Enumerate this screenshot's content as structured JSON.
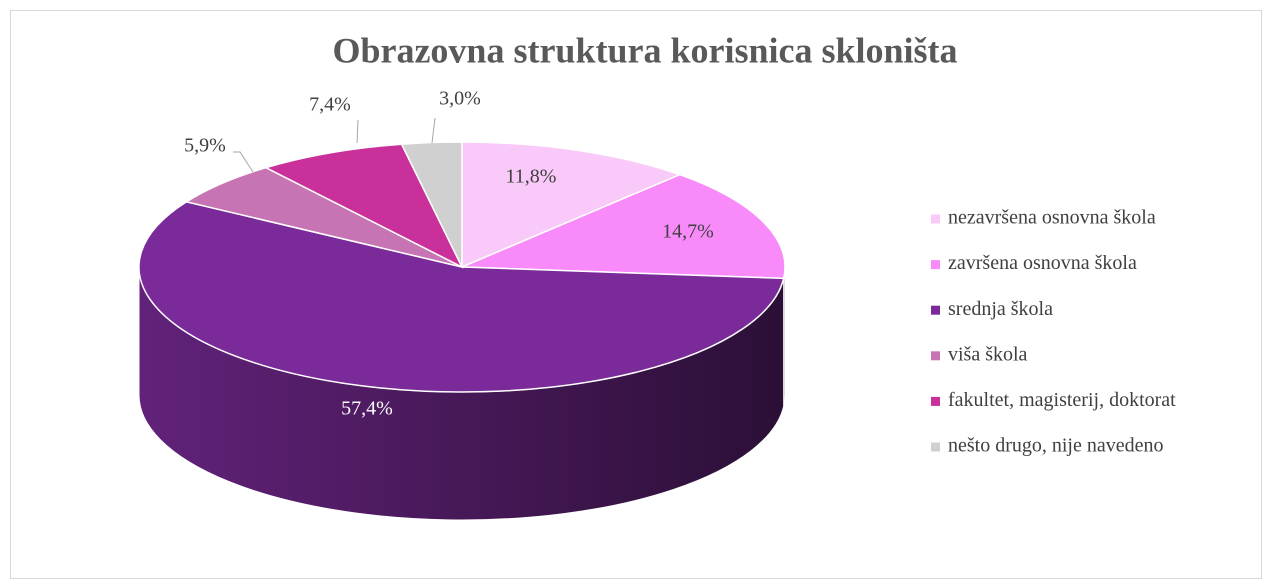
{
  "chart_data": {
    "type": "pie3d",
    "title": "Obrazovna struktura korisnica skloništa",
    "categories": [
      "nezavršena osnovna škola",
      "završena osnovna škola",
      "srednja škola",
      "viša škola",
      "fakultet, magisterij, doktorat",
      "nešto drugo, nije navedeno"
    ],
    "values": [
      11.8,
      14.7,
      57.4,
      5.9,
      7.4,
      3.0
    ],
    "value_labels": [
      "11,8%",
      "14,7%",
      "57,4%",
      "5,9%",
      "7,4%",
      "3,0%"
    ],
    "colors": [
      "#f9c9f9",
      "#f98af9",
      "#7b2b99",
      "#c774b4",
      "#c93099",
      "#d0d0d0"
    ],
    "legend": "right"
  }
}
